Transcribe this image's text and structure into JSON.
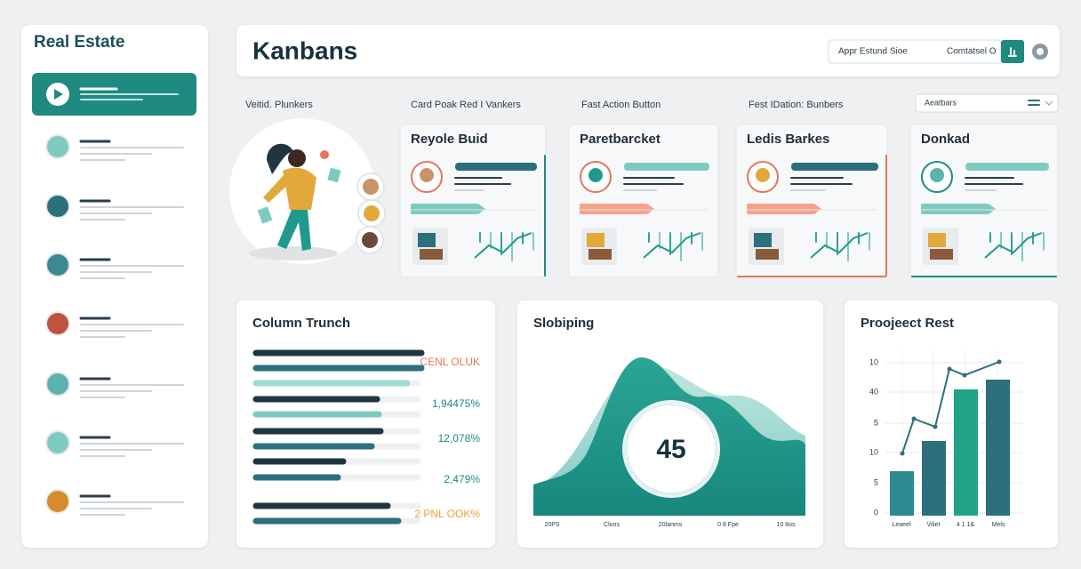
{
  "sidebar": {
    "title": "Real Estate"
  },
  "header": {
    "title": "Kanbans",
    "search": "Appr Estund Sioe",
    "filter": "Comtatsel O"
  },
  "columns": [
    "Veitid. Plunkers",
    "Card Poak Red I Vankers",
    "Fast Action Button",
    "Fest IDation: Bunbers"
  ],
  "dropdown": "Aeatbars",
  "cards": [
    {
      "title": "Reyole Buid"
    },
    {
      "title": "Paretbarcket"
    },
    {
      "title": "Ledis Barkes"
    },
    {
      "title": "Donkad"
    }
  ],
  "panels": {
    "column_trunch": {
      "title": "Column Trunch",
      "labels": [
        "CENL OLUK",
        "1,94475%",
        "12,078%",
        "2,479%",
        "2 PNL OOK%"
      ]
    },
    "slobiping": {
      "title": "Slobiping",
      "center": "45",
      "x_labels": [
        "20PS",
        "Cloos",
        "20lanms",
        "0 8 Fpe",
        "10 8os"
      ]
    },
    "project_rest": {
      "title": "Proojeect Rest",
      "y_labels": [
        "10",
        "40",
        "5",
        "10",
        "5",
        "0"
      ],
      "x_labels": [
        "Leaeel",
        "Viliet",
        "4 1 1&",
        "Mels"
      ]
    }
  }
}
